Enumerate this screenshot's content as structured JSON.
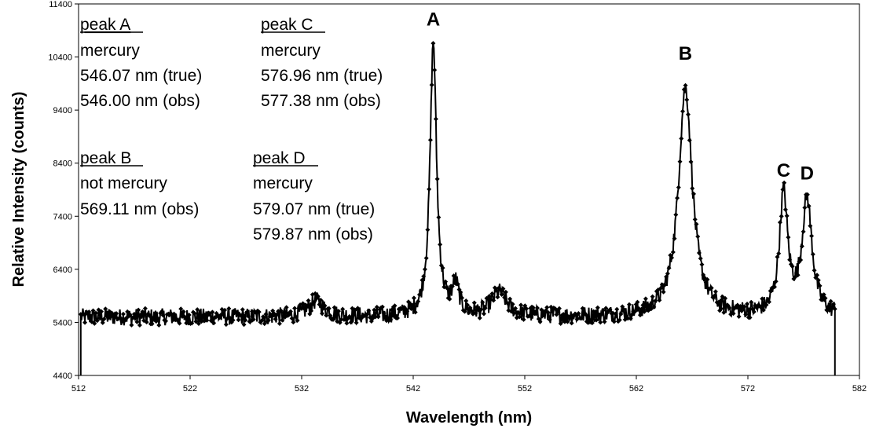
{
  "chart_data": {
    "type": "line",
    "title": "",
    "xlabel": "Wavelength (nm)",
    "ylabel": "Relative Intensity (counts)",
    "xlim": [
      512,
      582
    ],
    "ylim": [
      4400,
      11400
    ],
    "x_ticks": [
      512,
      522,
      532,
      542,
      552,
      562,
      572,
      582
    ],
    "y_ticks": [
      4400,
      5400,
      6400,
      7400,
      8400,
      9400,
      10400,
      11400
    ],
    "grid": false,
    "legend": "none",
    "series_color": "#000000",
    "baseline": 5500,
    "noise_amplitude": 160,
    "features": [
      {
        "center": 533.3,
        "height": 300,
        "width": 0.8
      },
      {
        "center": 543.8,
        "height": 5150,
        "width": 0.35
      },
      {
        "center": 545.8,
        "height": 550,
        "width": 0.35
      },
      {
        "center": 549.7,
        "height": 450,
        "width": 0.8
      },
      {
        "center": 566.4,
        "height": 4300,
        "width": 0.75
      },
      {
        "center": 575.2,
        "height": 2250,
        "width": 0.45
      },
      {
        "center": 577.3,
        "height": 2150,
        "width": 0.55
      }
    ],
    "peak_labels": [
      {
        "text": "A",
        "x": 543.8,
        "y": 10700
      },
      {
        "text": "B",
        "x": 566.4,
        "y": 10050
      },
      {
        "text": "C",
        "x": 575.2,
        "y": 7850
      },
      {
        "text": "D",
        "x": 577.3,
        "y": 7800
      }
    ],
    "annotations": {
      "peak_a": {
        "heading": "peak A",
        "lines": [
          "mercury",
          "546.07 nm (true)",
          "546.00 nm (obs)"
        ]
      },
      "peak_b": {
        "heading": "peak B",
        "lines": [
          "not mercury",
          "569.11 nm (obs)"
        ]
      },
      "peak_c": {
        "heading": "peak C",
        "lines": [
          "mercury",
          "576.96 nm (true)",
          "577.38 nm (obs)"
        ]
      },
      "peak_d": {
        "heading": "peak D",
        "lines": [
          "mercury",
          "579.07 nm (true)",
          "579.87 nm (obs)"
        ]
      }
    }
  }
}
